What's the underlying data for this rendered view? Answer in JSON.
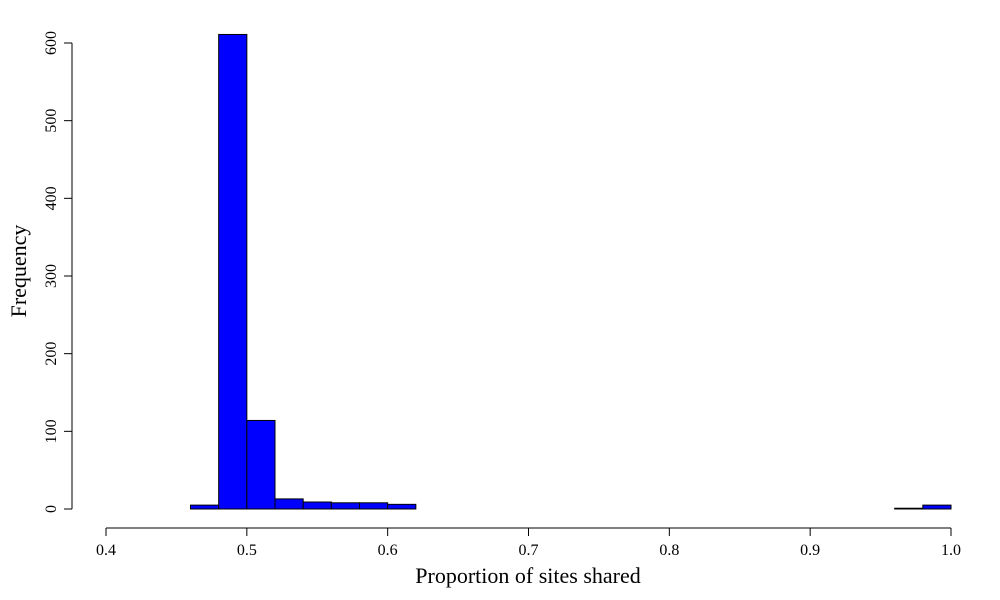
{
  "chart_data": {
    "type": "bar",
    "subtype": "histogram",
    "title": "",
    "xlabel": "Proportion of sites shared",
    "ylabel": "Frequency",
    "xlim": [
      0.4,
      1.0
    ],
    "ylim": [
      0,
      600
    ],
    "xticks": [
      "0.4",
      "0.5",
      "0.6",
      "0.7",
      "0.8",
      "0.9",
      "1.0"
    ],
    "yticks": [
      "0",
      "100",
      "200",
      "300",
      "400",
      "500",
      "600"
    ],
    "bin_width": 0.02,
    "bins": [
      {
        "start": 0.46,
        "end": 0.48,
        "count": 5
      },
      {
        "start": 0.48,
        "end": 0.5,
        "count": 611
      },
      {
        "start": 0.5,
        "end": 0.52,
        "count": 114
      },
      {
        "start": 0.52,
        "end": 0.54,
        "count": 13
      },
      {
        "start": 0.54,
        "end": 0.56,
        "count": 9
      },
      {
        "start": 0.56,
        "end": 0.58,
        "count": 8
      },
      {
        "start": 0.58,
        "end": 0.6,
        "count": 8
      },
      {
        "start": 0.6,
        "end": 0.62,
        "count": 6
      },
      {
        "start": 0.62,
        "end": 0.64,
        "count": 0
      },
      {
        "start": 0.64,
        "end": 0.66,
        "count": 0
      },
      {
        "start": 0.66,
        "end": 0.68,
        "count": 0
      },
      {
        "start": 0.68,
        "end": 0.7,
        "count": 0
      },
      {
        "start": 0.7,
        "end": 0.72,
        "count": 0
      },
      {
        "start": 0.72,
        "end": 0.74,
        "count": 0
      },
      {
        "start": 0.74,
        "end": 0.76,
        "count": 0
      },
      {
        "start": 0.76,
        "end": 0.78,
        "count": 0
      },
      {
        "start": 0.78,
        "end": 0.8,
        "count": 0
      },
      {
        "start": 0.8,
        "end": 0.82,
        "count": 0
      },
      {
        "start": 0.82,
        "end": 0.84,
        "count": 0
      },
      {
        "start": 0.84,
        "end": 0.86,
        "count": 0
      },
      {
        "start": 0.86,
        "end": 0.88,
        "count": 0
      },
      {
        "start": 0.88,
        "end": 0.9,
        "count": 0
      },
      {
        "start": 0.9,
        "end": 0.92,
        "count": 0
      },
      {
        "start": 0.92,
        "end": 0.94,
        "count": 0
      },
      {
        "start": 0.94,
        "end": 0.96,
        "count": 0
      },
      {
        "start": 0.96,
        "end": 0.98,
        "count": 1
      },
      {
        "start": 0.98,
        "end": 1.0,
        "count": 5
      }
    ],
    "bar_color": "#0000ff",
    "bar_border_color": "#000000",
    "grid": false,
    "legend": "none"
  }
}
